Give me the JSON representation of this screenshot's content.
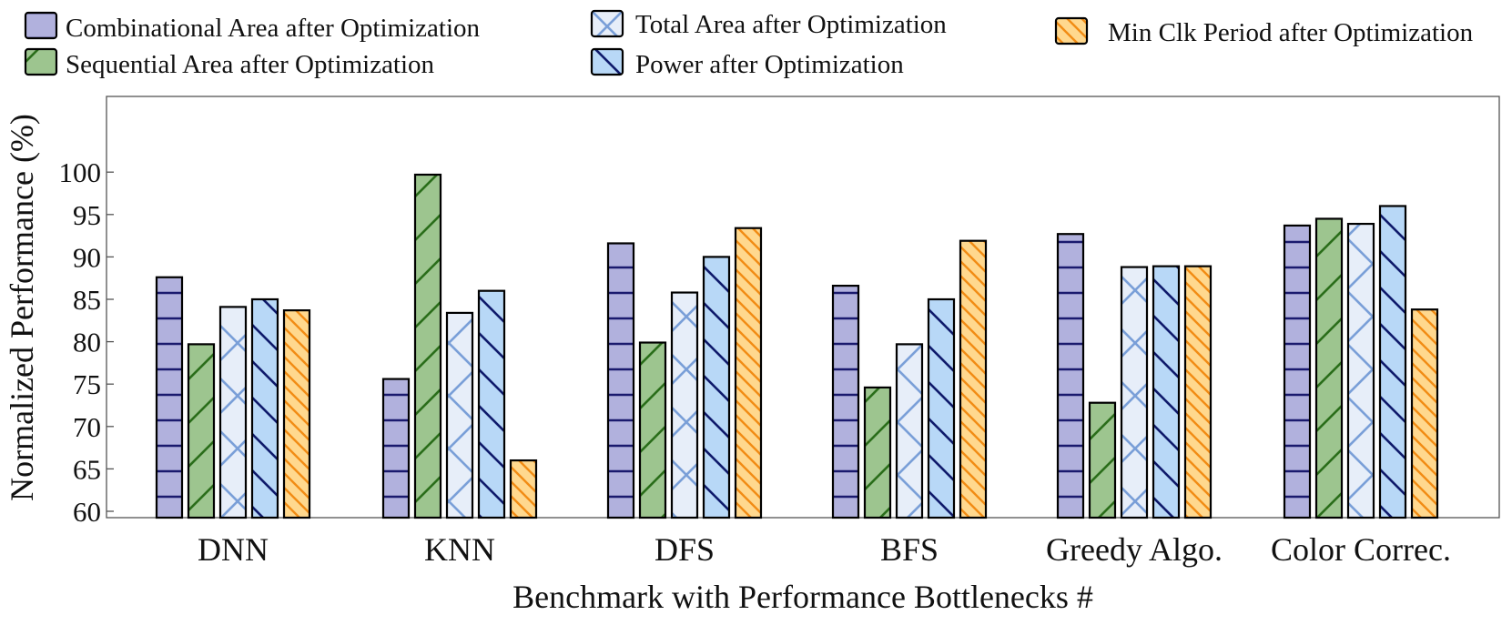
{
  "chart_data": {
    "type": "bar",
    "title": "",
    "xlabel": "Benchmark with Performance Bottlenecks #",
    "ylabel": "Normalized Performance (%)",
    "ylim": [
      59,
      109
    ],
    "yticks": [
      60,
      65,
      70,
      75,
      80,
      85,
      90,
      95,
      100
    ],
    "grid": false,
    "legend_position": "top",
    "categories": [
      "DNN",
      "KNN",
      "DFS",
      "BFS",
      "Greedy Algo.",
      "Color Correc."
    ],
    "series": [
      {
        "name": "Combinational Area after Optimization",
        "values": [
          87.6,
          75.6,
          91.6,
          86.6,
          92.7,
          93.7
        ],
        "fill": "#b1b1dd",
        "line": "#1a1a6e",
        "pattern": "horizontal"
      },
      {
        "name": "Sequential Area after Optimization",
        "values": [
          79.7,
          99.7,
          79.9,
          74.6,
          72.8,
          94.5
        ],
        "fill": "#9dc58f",
        "line": "#2a6e1a",
        "pattern": "diagonal-up"
      },
      {
        "name": "Total Area after Optimization",
        "values": [
          84.1,
          83.4,
          85.8,
          79.7,
          88.8,
          93.9
        ],
        "fill": "#e7eef9",
        "line": "#7a9fd8",
        "pattern": "crosshatch"
      },
      {
        "name": "Power after Optimization",
        "values": [
          85.0,
          86.0,
          90.0,
          85.0,
          88.9,
          96.0
        ],
        "fill": "#b8d8f7",
        "line": "#0f1a6b",
        "pattern": "diagonal-down"
      },
      {
        "name": "Min Clk Period after Optimization",
        "values": [
          83.7,
          66.0,
          93.4,
          91.9,
          88.9,
          83.8
        ],
        "fill": "#ffd88e",
        "line": "#f28c14",
        "pattern": "diagonal-down-dense"
      }
    ]
  }
}
